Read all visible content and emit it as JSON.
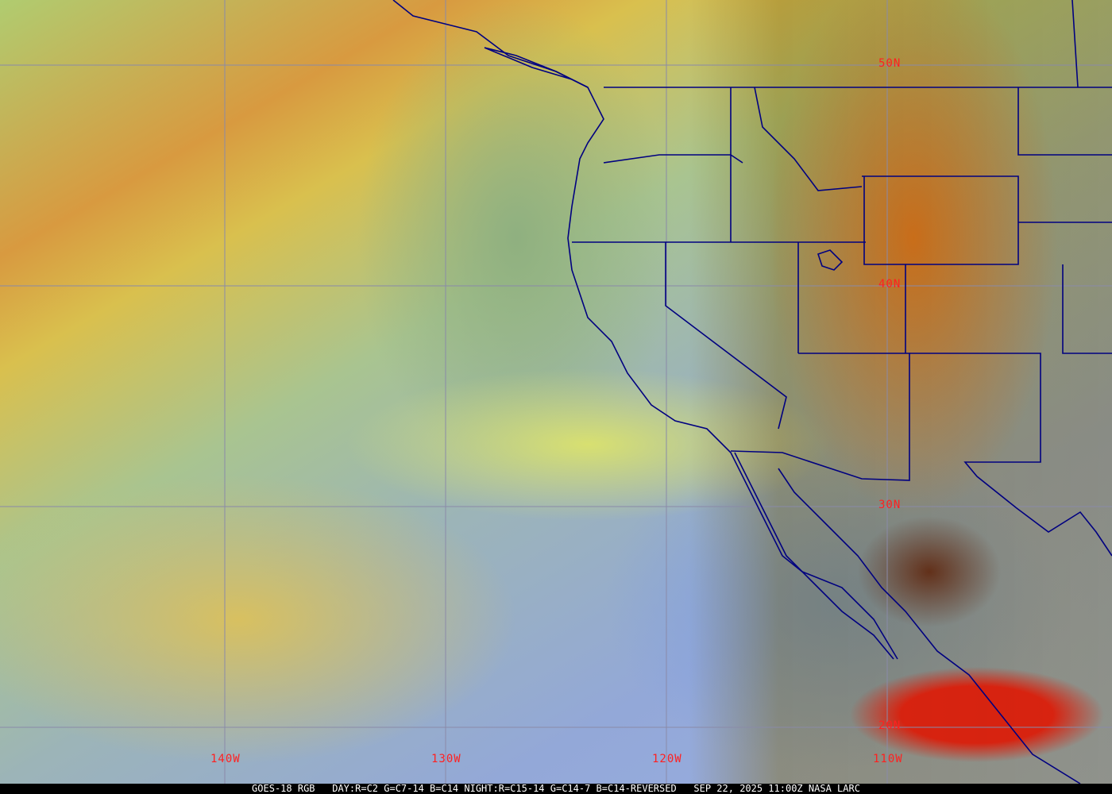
{
  "map": {
    "type": "satellite-rgb-composite",
    "grid_color": "#8a8aa8",
    "border_color": "#000080",
    "label_color": "#ff2020",
    "latitude_labels": [
      "50N",
      "40N",
      "30N",
      "20N"
    ],
    "longitude_labels": [
      "140W",
      "130W",
      "120W",
      "110W"
    ]
  },
  "footer": {
    "satellite": "GOES-18 RGB",
    "recipe": "DAY:R=C2 G=C7-14 B=C14 NIGHT:R=C15-14 G=C14-7 B=C14-REVERSED",
    "datetime": "SEP 22, 2025 11:00Z",
    "credit": "NASA LARC"
  }
}
